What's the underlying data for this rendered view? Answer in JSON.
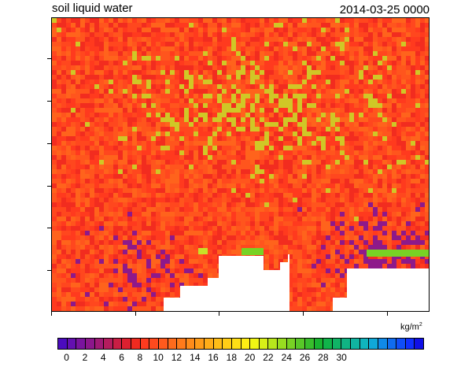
{
  "title": "soil liquid water",
  "timestamp": "2014-03-25 0000",
  "units_base": "kg/m",
  "units_exp": "2",
  "colorbar": {
    "labels": [
      "0",
      "2",
      "4",
      "6",
      "8",
      "10",
      "12",
      "14",
      "16",
      "18",
      "20",
      "22",
      "24",
      "26",
      "28",
      "30"
    ],
    "colors": [
      "#4b0cbe",
      "#6410b0",
      "#7a149e",
      "#8c178c",
      "#a01a76",
      "#b41c5e",
      "#c81e44",
      "#dc2030",
      "#f02a20",
      "#ff3b1f",
      "#ff4a1e",
      "#ff5a1d",
      "#ff6b1c",
      "#ff7b1b",
      "#ff8c1a",
      "#ff9c19",
      "#ffad18",
      "#ffbd17",
      "#ffcd16",
      "#ffde15",
      "#ffee14",
      "#f0f514",
      "#d8f018",
      "#b8e61c",
      "#98dc20",
      "#78d224",
      "#58c828",
      "#38be2c",
      "#18b430",
      "#10b44a",
      "#10b466",
      "#10b483",
      "#10b4a0",
      "#10b4bd",
      "#10a8d8",
      "#108ae8",
      "#106cf0",
      "#104ef8",
      "#1030ff",
      "#1010e8"
    ]
  },
  "map": {
    "base_color": "#ff3b1f",
    "land_colors": [
      "#ff3b1f",
      "#ff4a1e",
      "#ff5a1d",
      "#f02a20",
      "#ff6b1c"
    ],
    "wet_color": "#c8e028",
    "dry_color": "#7a149e",
    "missing_color": "#ffffff",
    "green_strip_color": "#78d224"
  }
}
